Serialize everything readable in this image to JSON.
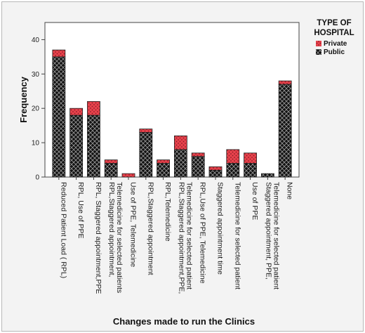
{
  "chart_data": {
    "type": "bar",
    "stacked": true,
    "title": "",
    "xlabel": "Changes made to run the Clinics",
    "ylabel": "Frequency",
    "ylim": [
      0,
      45
    ],
    "yticks": [
      0,
      10,
      20,
      30,
      40
    ],
    "grid": false,
    "legend": {
      "title_lines": [
        "TYPE OF",
        "HOSPITAL"
      ],
      "placement": "top-right outside",
      "entries": [
        "Private",
        "Public"
      ]
    },
    "colors": {
      "Private": "#e8424c",
      "Public": "#111111",
      "plot_background": "#ffffff",
      "frame_background": "#f3f3f3"
    },
    "categories": [
      [
        "Reduced Patient Load ( RPL)"
      ],
      [
        "RPL, Use of PPE"
      ],
      [
        "RPL, Staggered appointment,PPE"
      ],
      [
        "RPL,Staggered appointment,",
        "Telemedicine for selected patients"
      ],
      [
        "Use of PPE, Telemedicine"
      ],
      [
        "RPL,Staggered appointment"
      ],
      [
        "RPL,Telemedicine"
      ],
      [
        "RPL,Staggered appointment,PPE,",
        "Telemedicine for selected patient"
      ],
      [
        "RPL,Use of PPE, Telemedicine"
      ],
      [
        "Staggered appointment time"
      ],
      [
        "Telemedicine for selected patient"
      ],
      [
        "Use of PPE"
      ],
      [
        "Staggered appointment, PPE,",
        "Telemedicine for selected patient"
      ],
      [
        "None"
      ]
    ],
    "series": [
      {
        "name": "Public",
        "values": [
          35,
          18,
          18,
          4,
          0,
          13,
          4,
          8,
          6,
          2,
          4,
          4,
          1,
          27
        ]
      },
      {
        "name": "Private",
        "values": [
          2,
          2,
          4,
          1,
          1,
          1,
          1,
          4,
          1,
          1,
          4,
          3,
          0,
          1
        ]
      }
    ]
  }
}
